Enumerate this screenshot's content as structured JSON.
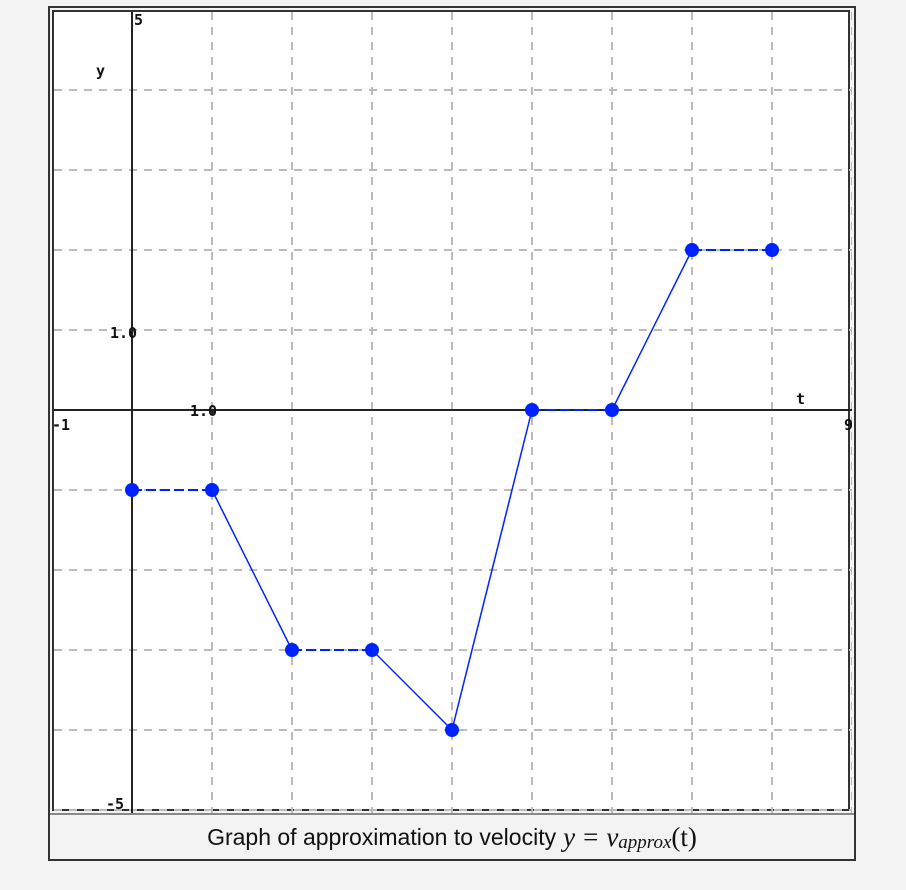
{
  "chart_data": {
    "type": "line",
    "title": "",
    "caption_text": "Graph of approximation to velocity",
    "caption_math": {
      "lhs": "y",
      "eq": "=",
      "func": "v",
      "sub": "approx",
      "arg": "(t)"
    },
    "xlabel": "t",
    "ylabel": "y",
    "xlim": [
      -1,
      9
    ],
    "ylim": [
      -5,
      5
    ],
    "grid": true,
    "tick_labels": {
      "x_min": "-1",
      "x_max": "9",
      "x_unit": "1.0",
      "y_min": "-5",
      "y_max": "5",
      "y_unit": "1.0"
    },
    "series": [
      {
        "name": "v_approx",
        "color": "#0022ff",
        "x": [
          0,
          1,
          2,
          3,
          4,
          5,
          6,
          7,
          8
        ],
        "y": [
          -1,
          -1,
          -3,
          -3,
          -4,
          0,
          0,
          2,
          2
        ]
      }
    ]
  },
  "colors": {
    "line": "#0022ff",
    "grid": "#bbbbbb",
    "axis": "#222222",
    "background": "#f3f3f3"
  }
}
